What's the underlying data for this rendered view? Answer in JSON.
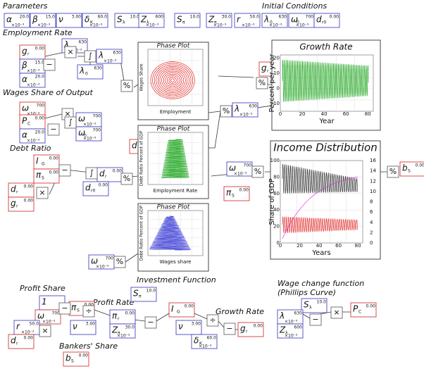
{
  "parameters_title": "Parameters",
  "initial_title": "Initial Conditions",
  "labels": [
    "Employment Rate",
    "Wages Share of Output",
    "Debt Ratio",
    "Profit Share",
    "Profit Rate",
    "Investment Function",
    "Growth Rate",
    "Bankers' Share",
    "Wage change function",
    "(Phillips Curve)"
  ],
  "vars": [
    {
      "sym": "α",
      "val": "20.0",
      "unit": "×10⁻³"
    },
    {
      "sym": "β",
      "val": "15.0",
      "unit": "×10⁻³"
    },
    {
      "sym": "ν",
      "val": "3.00"
    },
    {
      "sym": "δ",
      "sub": "K",
      "val": "60.0",
      "unit": "×10⁻³"
    },
    {
      "sym": "S",
      "sub": "λ",
      "val": "10.0"
    },
    {
      "sym": "Z",
      "sub": "λ",
      "val": "600",
      "unit": "×10⁻³"
    },
    {
      "sym": "S",
      "sub": "π",
      "val": "10.0"
    },
    {
      "sym": "Z",
      "sub": "π",
      "val": "30.0",
      "unit": "×10⁻³"
    },
    {
      "sym": "r",
      "val": "50.0",
      "unit": "×10⁻³"
    },
    {
      "sym": "λ",
      "sub": "0",
      "val": "630",
      "unit": "×10⁻³"
    },
    {
      "sym": "ω",
      "sub": "0",
      "val": "700",
      "unit": "×10⁻³"
    },
    {
      "sym": "d",
      "sub": "r0",
      "val": "0.00"
    },
    {
      "sym": "g",
      "sub": "r",
      "val": "0.00"
    },
    {
      "sym": "β",
      "val": "15.0",
      "unit": "×10⁻³"
    },
    {
      "sym": "α",
      "val": "20.0",
      "unit": "×10⁻³"
    },
    {
      "sym": "λ",
      "val": "630",
      "unit": "×10⁻³"
    },
    {
      "sym": "λ",
      "val": "630",
      "unit": "×10⁻³"
    },
    {
      "sym": "λ",
      "sub": "0",
      "val": "630"
    },
    {
      "sym": "ω",
      "val": "700",
      "unit": "×10⁻³"
    },
    {
      "sym": "P",
      "sub": "C",
      "val": "0.00"
    },
    {
      "sym": "α",
      "val": "20.0",
      "unit": "×10⁻³"
    },
    {
      "sym": "ω",
      "val": "700",
      "unit": "×10⁻³"
    },
    {
      "sym": "ω",
      "sub": "0",
      "val": "700",
      "unit": "×10⁻³"
    },
    {
      "sym": "I",
      "sub": "G",
      "val": "0.00"
    },
    {
      "sym": "π",
      "sub": "S",
      "val": "0.00"
    },
    {
      "sym": "d",
      "sub": "r",
      "val": "0.00"
    },
    {
      "sym": "g",
      "sub": "r",
      "val": "0.00"
    },
    {
      "sym": "d",
      "sub": "r",
      "val": "0.00"
    },
    {
      "sym": "d",
      "sub": "r0",
      "val": "0.00"
    },
    {
      "sym": "d",
      "sub": "r",
      "val": "0.00"
    },
    {
      "sym": "λ",
      "val": "630",
      "unit": "×10⁻³"
    },
    {
      "sym": "ω",
      "val": "700",
      "unit": "×10⁻³"
    },
    {
      "sym": "g",
      "sub": "r",
      "val": "0.00"
    },
    {
      "sym": "ω",
      "val": "700",
      "unit": "×10⁻³"
    },
    {
      "sym": "π",
      "sub": "S",
      "val": "0.00"
    },
    {
      "sym": "b",
      "sub": "S",
      "val": "0.00"
    },
    {
      "sym": "1"
    },
    {
      "sym": "ω",
      "val": "700",
      "unit": "×10⁻³"
    },
    {
      "sym": "r",
      "val": "50.0",
      "unit": "×10⁻³"
    },
    {
      "sym": "d",
      "sub": "r",
      "val": "0.00"
    },
    {
      "sym": "π",
      "sub": "S",
      "val": "0.00"
    },
    {
      "sym": "ν",
      "val": "3.00"
    },
    {
      "sym": "π",
      "sub": "r",
      "val": "0.00"
    },
    {
      "sym": "Z",
      "sub": "π",
      "val": "30.0",
      "unit": "×10⁻³"
    },
    {
      "sym": "S",
      "sub": "π",
      "val": "10.0"
    },
    {
      "sym": "I",
      "sub": "G",
      "val": "0.00"
    },
    {
      "sym": "ν",
      "val": "3.00"
    },
    {
      "sym": "δ",
      "sub": "K",
      "val": "60.0",
      "unit": "×10⁻³"
    },
    {
      "sym": "g",
      "sub": "r",
      "val": "0.00"
    },
    {
      "sym": "b",
      "sub": "S",
      "val": "0.00"
    },
    {
      "sym": "S",
      "sub": "λ",
      "val": "10.0"
    },
    {
      "sym": "λ",
      "val": "630",
      "unit": "×10⁻³"
    },
    {
      "sym": "Z",
      "sub": "λ",
      "val": "600",
      "unit": "×10⁻³"
    },
    {
      "sym": "P",
      "sub": "C",
      "val": "0.00"
    }
  ],
  "operators": [
    "−",
    "×",
    "∫",
    "×",
    "−",
    "∫",
    "−",
    "×",
    "∫",
    "%",
    "%",
    "%",
    "%",
    "%",
    "%",
    "%",
    "−",
    "×",
    "÷",
    "−",
    "÷",
    "−",
    "×",
    "−"
  ],
  "plots": [
    {
      "title": "Phase Plot",
      "xlabel": "Employment",
      "ylabel": "Wages Share"
    },
    {
      "title": "Phase Plot",
      "xlabel": "Employment Rate",
      "ylabel": "Debt Ratio Percent of GDP"
    },
    {
      "title": "Phase Plot",
      "xlabel": "Wages share",
      "ylabel": "Debt Ratio Percent of GDP"
    },
    {
      "title": "Growth Rate",
      "xlabel": "Year",
      "ylabel": "Percent per year",
      "yticks": [
        20,
        10,
        0,
        -10
      ],
      "xticks": [
        0,
        20,
        40,
        60,
        80
      ]
    },
    {
      "title": "Income Distribution",
      "xlabel": "Years",
      "ylabel": "Share of GDP",
      "yticks": [
        0,
        20,
        40,
        60,
        80,
        100
      ],
      "y2ticks": [
        0,
        2,
        4,
        6,
        8,
        10,
        12,
        14,
        16
      ],
      "xticks": [
        0,
        20,
        40,
        60,
        80
      ]
    }
  ]
}
